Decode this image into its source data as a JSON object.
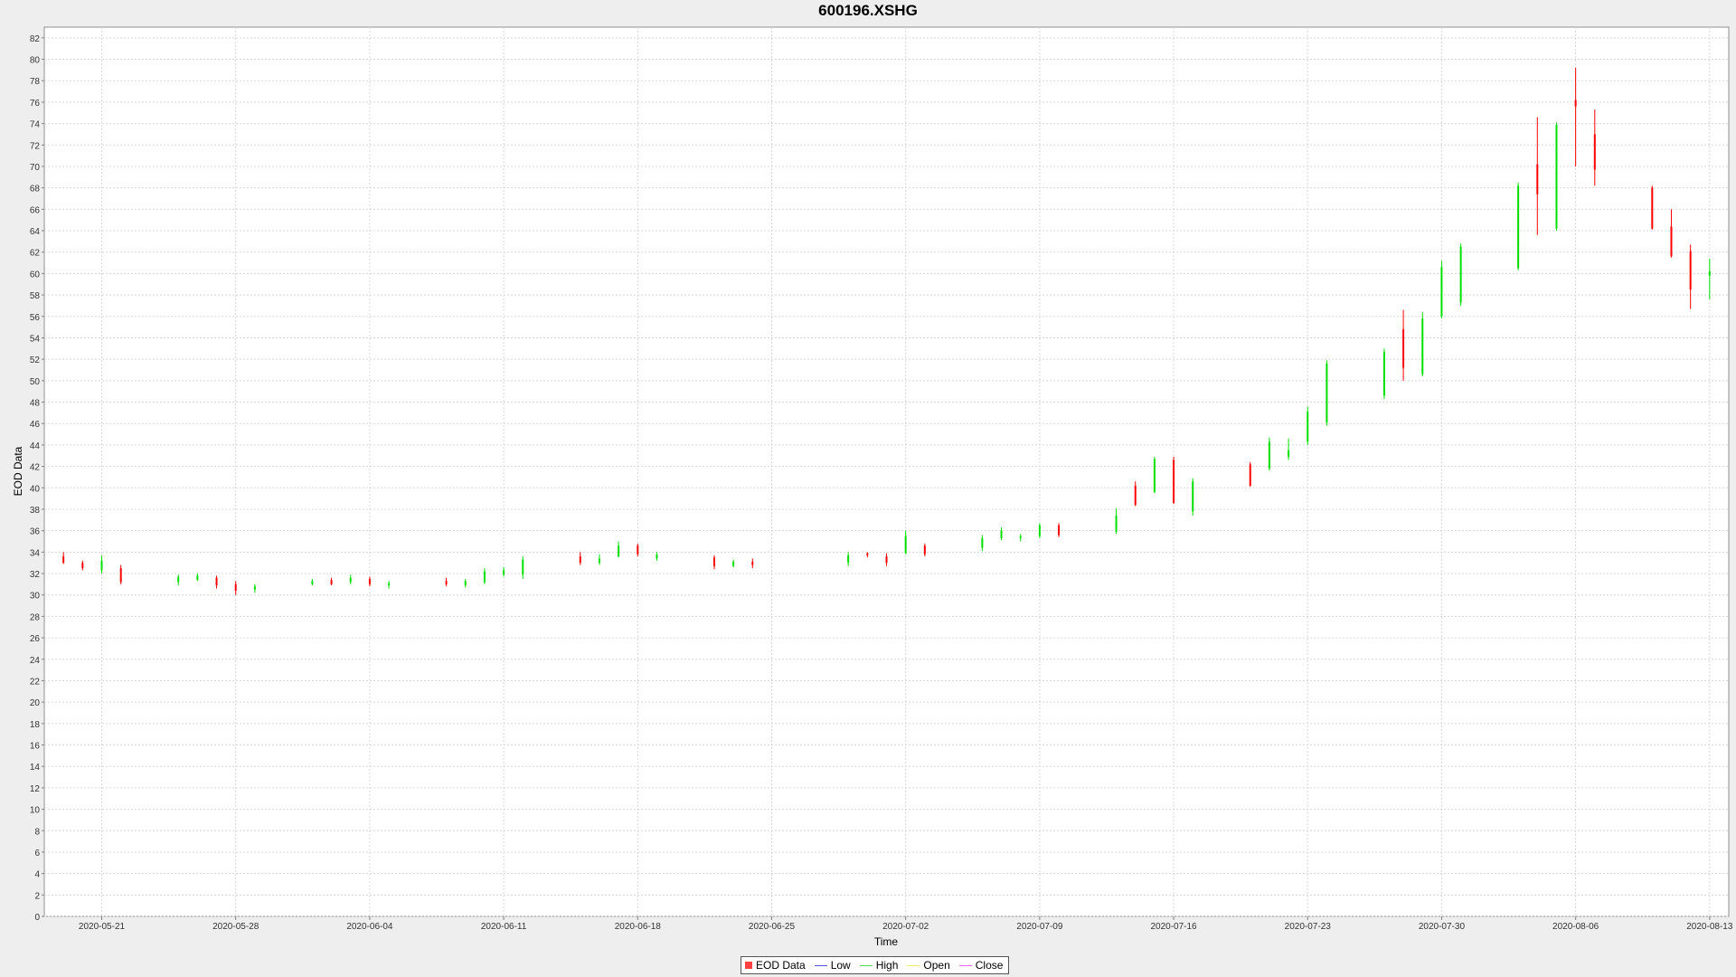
{
  "chart_data": {
    "type": "candlestick",
    "title": "600196.XSHG",
    "xlabel": "Time",
    "ylabel": "EOD Data",
    "ylim": [
      0,
      83
    ],
    "y_ticks": [
      0,
      2,
      4,
      6,
      8,
      10,
      12,
      14,
      16,
      18,
      20,
      22,
      24,
      26,
      28,
      30,
      32,
      34,
      36,
      38,
      40,
      42,
      44,
      46,
      48,
      50,
      52,
      54,
      56,
      58,
      60,
      62,
      64,
      66,
      68,
      70,
      72,
      74,
      76,
      78,
      80,
      82
    ],
    "x_range": [
      "2020-05-18",
      "2020-08-14"
    ],
    "x_ticks": [
      "2020-05-21",
      "2020-05-28",
      "2020-06-04",
      "2020-06-11",
      "2020-06-18",
      "2020-06-25",
      "2020-07-02",
      "2020-07-09",
      "2020-07-16",
      "2020-07-23",
      "2020-07-30",
      "2020-08-06",
      "2020-08-13"
    ],
    "grid": true,
    "legend_position": "bottom",
    "legend": [
      {
        "label": "EOD Data",
        "color": "#ff4040",
        "kind": "box"
      },
      {
        "label": "Low",
        "color": "#5555dd",
        "kind": "line"
      },
      {
        "label": "High",
        "color": "#55dd55",
        "kind": "line"
      },
      {
        "label": "Open",
        "color": "#eeee66",
        "kind": "line"
      },
      {
        "label": "Close",
        "color": "#ee66ee",
        "kind": "line"
      }
    ],
    "colors": {
      "up": "#00e000",
      "down": "#ff0000",
      "grid": "#d8d8d8"
    },
    "series": [
      {
        "date": "2020-05-19",
        "open": 33.6,
        "high": 34.0,
        "low": 32.9,
        "close": 33.0
      },
      {
        "date": "2020-05-20",
        "open": 33.0,
        "high": 33.2,
        "low": 32.3,
        "close": 32.5
      },
      {
        "date": "2020-05-21",
        "open": 32.3,
        "high": 33.7,
        "low": 32.0,
        "close": 33.2
      },
      {
        "date": "2020-05-22",
        "open": 32.5,
        "high": 32.8,
        "low": 31.0,
        "close": 31.2
      },
      {
        "date": "2020-05-25",
        "open": 31.2,
        "high": 31.9,
        "low": 30.9,
        "close": 31.7
      },
      {
        "date": "2020-05-26",
        "open": 31.4,
        "high": 32.0,
        "low": 31.3,
        "close": 31.8
      },
      {
        "date": "2020-05-27",
        "open": 31.6,
        "high": 31.8,
        "low": 30.6,
        "close": 30.9
      },
      {
        "date": "2020-05-28",
        "open": 31.0,
        "high": 31.3,
        "low": 30.0,
        "close": 30.4
      },
      {
        "date": "2020-05-29",
        "open": 30.5,
        "high": 31.0,
        "low": 30.2,
        "close": 30.8
      },
      {
        "date": "2020-06-01",
        "open": 31.0,
        "high": 31.5,
        "low": 30.9,
        "close": 31.3
      },
      {
        "date": "2020-06-02",
        "open": 31.4,
        "high": 31.6,
        "low": 30.9,
        "close": 31.0
      },
      {
        "date": "2020-06-03",
        "open": 31.2,
        "high": 31.9,
        "low": 31.0,
        "close": 31.6
      },
      {
        "date": "2020-06-04",
        "open": 31.5,
        "high": 31.7,
        "low": 30.8,
        "close": 31.0
      },
      {
        "date": "2020-06-05",
        "open": 30.9,
        "high": 31.3,
        "low": 30.6,
        "close": 31.1
      },
      {
        "date": "2020-06-08",
        "open": 31.3,
        "high": 31.6,
        "low": 30.8,
        "close": 31.0
      },
      {
        "date": "2020-06-09",
        "open": 30.9,
        "high": 31.5,
        "low": 30.7,
        "close": 31.3
      },
      {
        "date": "2020-06-10",
        "open": 31.2,
        "high": 32.5,
        "low": 31.0,
        "close": 32.2
      },
      {
        "date": "2020-06-11",
        "open": 31.9,
        "high": 32.6,
        "low": 31.7,
        "close": 32.3
      },
      {
        "date": "2020-06-12",
        "open": 31.9,
        "high": 33.6,
        "low": 31.5,
        "close": 33.3
      },
      {
        "date": "2020-06-15",
        "open": 33.6,
        "high": 34.0,
        "low": 32.8,
        "close": 33.0
      },
      {
        "date": "2020-06-16",
        "open": 33.0,
        "high": 33.8,
        "low": 32.8,
        "close": 33.4
      },
      {
        "date": "2020-06-17",
        "open": 33.6,
        "high": 35.0,
        "low": 33.5,
        "close": 34.6
      },
      {
        "date": "2020-06-18",
        "open": 34.6,
        "high": 34.8,
        "low": 33.6,
        "close": 33.8
      },
      {
        "date": "2020-06-19",
        "open": 33.4,
        "high": 34.0,
        "low": 33.2,
        "close": 33.8
      },
      {
        "date": "2020-06-22",
        "open": 33.5,
        "high": 33.7,
        "low": 32.4,
        "close": 32.7
      },
      {
        "date": "2020-06-23",
        "open": 32.7,
        "high": 33.3,
        "low": 32.6,
        "close": 33.1
      },
      {
        "date": "2020-06-24",
        "open": 33.1,
        "high": 33.4,
        "low": 32.5,
        "close": 32.8
      },
      {
        "date": "2020-06-29",
        "open": 33.0,
        "high": 34.0,
        "low": 32.7,
        "close": 33.7
      },
      {
        "date": "2020-06-30",
        "open": 33.9,
        "high": 34.0,
        "low": 33.5,
        "close": 33.7
      },
      {
        "date": "2020-07-01",
        "open": 33.6,
        "high": 33.9,
        "low": 32.7,
        "close": 33.0
      },
      {
        "date": "2020-07-02",
        "open": 33.9,
        "high": 36.0,
        "low": 33.8,
        "close": 35.5
      },
      {
        "date": "2020-07-03",
        "open": 34.6,
        "high": 34.8,
        "low": 33.6,
        "close": 33.8
      },
      {
        "date": "2020-07-06",
        "open": 34.4,
        "high": 35.6,
        "low": 34.1,
        "close": 35.3
      },
      {
        "date": "2020-07-07",
        "open": 35.3,
        "high": 36.3,
        "low": 35.1,
        "close": 36.0
      },
      {
        "date": "2020-07-08",
        "open": 35.3,
        "high": 35.7,
        "low": 35.0,
        "close": 35.5
      },
      {
        "date": "2020-07-09",
        "open": 35.5,
        "high": 36.7,
        "low": 35.3,
        "close": 36.5
      },
      {
        "date": "2020-07-10",
        "open": 36.5,
        "high": 36.7,
        "low": 35.4,
        "close": 35.6
      },
      {
        "date": "2020-07-13",
        "open": 35.9,
        "high": 38.1,
        "low": 35.7,
        "close": 37.4
      },
      {
        "date": "2020-07-14",
        "open": 40.2,
        "high": 40.6,
        "low": 38.3,
        "close": 38.4
      },
      {
        "date": "2020-07-15",
        "open": 39.6,
        "high": 42.9,
        "low": 39.5,
        "close": 42.7
      },
      {
        "date": "2020-07-16",
        "open": 42.6,
        "high": 42.9,
        "low": 38.5,
        "close": 38.6
      },
      {
        "date": "2020-07-17",
        "open": 37.8,
        "high": 40.9,
        "low": 37.4,
        "close": 40.6
      },
      {
        "date": "2020-07-20",
        "open": 42.2,
        "high": 42.4,
        "low": 40.1,
        "close": 40.2
      },
      {
        "date": "2020-07-21",
        "open": 41.8,
        "high": 44.7,
        "low": 41.6,
        "close": 44.3
      },
      {
        "date": "2020-07-22",
        "open": 42.9,
        "high": 44.6,
        "low": 42.6,
        "close": 43.5
      },
      {
        "date": "2020-07-23",
        "open": 44.3,
        "high": 47.6,
        "low": 44.0,
        "close": 47.1
      },
      {
        "date": "2020-07-24",
        "open": 46.1,
        "high": 51.9,
        "low": 45.8,
        "close": 51.6
      },
      {
        "date": "2020-07-27",
        "open": 48.6,
        "high": 53.0,
        "low": 48.3,
        "close": 52.7
      },
      {
        "date": "2020-07-28",
        "open": 54.8,
        "high": 56.6,
        "low": 50.0,
        "close": 51.2
      },
      {
        "date": "2020-07-29",
        "open": 50.6,
        "high": 56.4,
        "low": 50.4,
        "close": 55.8
      },
      {
        "date": "2020-07-30",
        "open": 56.0,
        "high": 61.2,
        "low": 55.8,
        "close": 60.6
      },
      {
        "date": "2020-07-31",
        "open": 57.3,
        "high": 62.8,
        "low": 57.0,
        "close": 62.5
      },
      {
        "date": "2020-08-03",
        "open": 60.5,
        "high": 68.5,
        "low": 60.3,
        "close": 68.2
      },
      {
        "date": "2020-08-04",
        "open": 70.2,
        "high": 74.6,
        "low": 63.6,
        "close": 67.4
      },
      {
        "date": "2020-08-05",
        "open": 64.2,
        "high": 74.1,
        "low": 64.0,
        "close": 73.9
      },
      {
        "date": "2020-08-06",
        "open": 76.2,
        "high": 79.2,
        "low": 70.0,
        "close": 75.6
      },
      {
        "date": "2020-08-07",
        "open": 73.0,
        "high": 75.3,
        "low": 68.2,
        "close": 69.7
      },
      {
        "date": "2020-08-10",
        "open": 68.0,
        "high": 68.2,
        "low": 64.1,
        "close": 64.2
      },
      {
        "date": "2020-08-11",
        "open": 64.4,
        "high": 66.0,
        "low": 61.5,
        "close": 61.6
      },
      {
        "date": "2020-08-12",
        "open": 62.1,
        "high": 62.7,
        "low": 56.7,
        "close": 58.5
      },
      {
        "date": "2020-08-13",
        "open": 59.8,
        "high": 61.4,
        "low": 57.6,
        "close": 60.2
      }
    ]
  }
}
